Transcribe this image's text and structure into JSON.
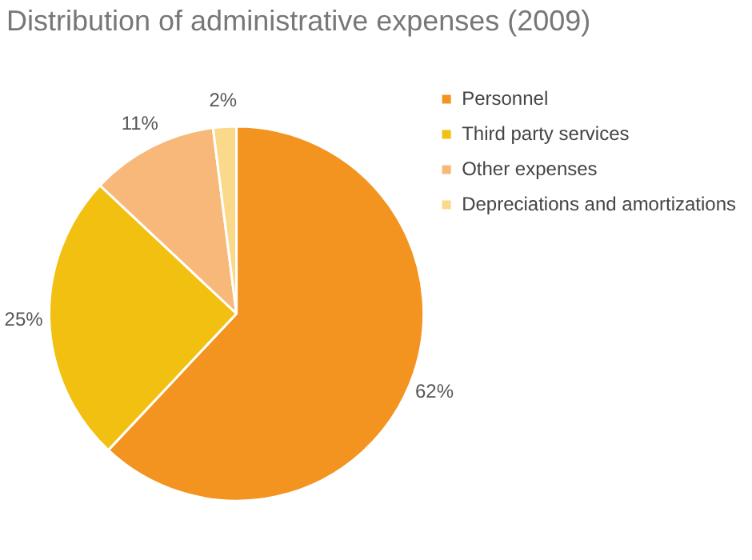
{
  "chart_data": {
    "type": "pie",
    "title": "Distribution of administrative expenses (2009)",
    "categories": [
      "Personnel",
      "Third party services",
      "Other expenses",
      "Depreciations and amortizations"
    ],
    "values": [
      62,
      25,
      11,
      2
    ],
    "colors": [
      "#f39420",
      "#f1c010",
      "#f8b87a",
      "#fad98a"
    ],
    "value_labels": [
      "62%",
      "25%",
      "11%",
      "2%"
    ],
    "legend": "top right"
  }
}
